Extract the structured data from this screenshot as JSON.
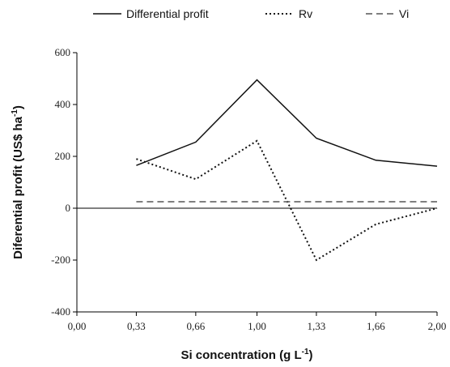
{
  "chart_data": {
    "type": "line",
    "x_label": {
      "text": "Si concentration (g L",
      "sup": "-1",
      "end": ")"
    },
    "y_label": {
      "text": "Diferential profit (US$ ha",
      "sup": "-1",
      "end": ")"
    },
    "x": [
      0.33,
      0.66,
      1.0,
      1.33,
      1.66,
      2.0
    ],
    "series": [
      {
        "name": "Differential profit",
        "color": "#111111",
        "dash": "solid",
        "values": [
          165,
          255,
          495,
          270,
          185,
          162
        ]
      },
      {
        "name": "Rv",
        "color": "#111111",
        "dash": "dotted",
        "values": [
          190,
          112,
          260,
          -200,
          -62,
          0
        ]
      },
      {
        "name": "Vi",
        "color": "#555555",
        "dash": "dashed",
        "values": [
          25,
          25,
          25,
          25,
          25,
          25
        ]
      }
    ],
    "xlim": [
      0,
      2
    ],
    "xticks": [
      {
        "value": 0,
        "label": "0,00"
      },
      {
        "value": 0.33,
        "label": "0,33"
      },
      {
        "value": 0.66,
        "label": "0,66"
      },
      {
        "value": 1.0,
        "label": "1,00"
      },
      {
        "value": 1.33,
        "label": "1,33"
      },
      {
        "value": 1.66,
        "label": "1,66"
      },
      {
        "value": 2.0,
        "label": "2,00"
      }
    ],
    "ylim": [
      -400,
      600
    ],
    "yticks": [
      -400,
      -200,
      0,
      200,
      400,
      600
    ],
    "zero_line": true,
    "legend": "top"
  }
}
